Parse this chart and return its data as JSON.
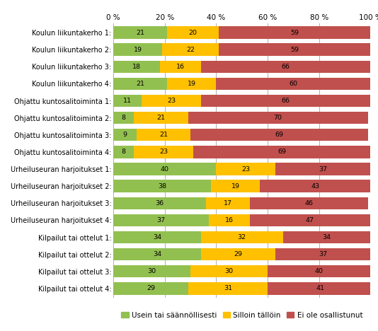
{
  "categories": [
    "Koulun liikuntakerho 1:",
    "Koulun liikuntakerho 2:",
    "Koulun liikuntakerho 3:",
    "Koulun liikuntakerho 4:",
    "Ohjattu kuntosalitoiminta 1:",
    "Ohjattu kuntosalitoiminta 2:",
    "Ohjattu kuntosalitoiminta 3:",
    "Ohjattu kuntosalitoiminta 4:",
    "Urheiluseuran harjoitukset 1:",
    "Urheiluseuran harjoitukset 2:",
    "Urheiluseuran harjoitukset 3:",
    "Urheiluseuran harjoitukset 4:",
    "Kilpailut tai ottelut 1:",
    "Kilpailut tai ottelut 2:",
    "Kilpailut tai ottelut 3:",
    "Kilpailut tai ottelut 4:"
  ],
  "green_values": [
    21,
    19,
    18,
    21,
    11,
    8,
    9,
    8,
    40,
    38,
    36,
    37,
    34,
    34,
    30,
    29
  ],
  "yellow_values": [
    20,
    22,
    16,
    19,
    23,
    21,
    21,
    23,
    23,
    19,
    17,
    16,
    32,
    29,
    30,
    31
  ],
  "red_values": [
    59,
    59,
    66,
    60,
    66,
    70,
    69,
    69,
    37,
    43,
    46,
    47,
    34,
    37,
    40,
    41
  ],
  "green_color": "#92c050",
  "yellow_color": "#ffc000",
  "red_color": "#c0504d",
  "legend_labels": [
    "Usein tai säännöllisesti",
    "Silloin tällöin",
    "Ei ole osallistunut"
  ],
  "xlim": [
    0,
    100
  ],
  "xtick_values": [
    0,
    20,
    40,
    60,
    80,
    100
  ],
  "xtick_labels": [
    "0 %",
    "20 %",
    "40 %",
    "60 %",
    "80 %",
    "100 %"
  ],
  "bar_height": 0.72,
  "figsize": [
    5.34,
    4.68
  ],
  "dpi": 100,
  "background_color": "#ffffff",
  "grid_color": "#b0b0b0",
  "label_fontsize": 7.0,
  "tick_fontsize": 7.5,
  "legend_fontsize": 7.5,
  "value_fontsize": 6.8
}
